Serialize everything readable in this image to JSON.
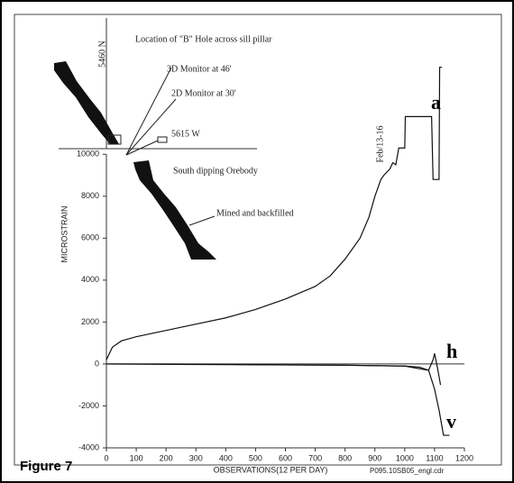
{
  "chart_data": {
    "type": "line",
    "x_label": "OBSERVATIONS(12 PER DAY)",
    "y_label": "MICROSTRAIN",
    "xlim": [
      0,
      1200
    ],
    "xticks": [
      0,
      100,
      200,
      300,
      400,
      500,
      600,
      700,
      800,
      900,
      1000,
      1100,
      1200
    ],
    "ylim": [
      -4000,
      16500
    ],
    "yticks": [
      -4000,
      -2000,
      0,
      2000,
      4000,
      6000,
      8000,
      10000
    ],
    "series": [
      {
        "name": "a",
        "color": "#111111",
        "x": [
          0,
          20,
          50,
          100,
          200,
          300,
          400,
          500,
          600,
          700,
          750,
          800,
          850,
          880,
          900,
          920,
          930,
          950,
          960,
          970,
          980,
          1000,
          1002,
          1090,
          1095,
          1115,
          1117,
          1125
        ],
        "values": [
          200,
          800,
          1100,
          1300,
          1600,
          1900,
          2200,
          2600,
          3100,
          3700,
          4200,
          5000,
          6000,
          7000,
          8000,
          8800,
          9000,
          9300,
          9600,
          9500,
          10300,
          10300,
          11800,
          11800,
          8800,
          8800,
          14150,
          14150
        ]
      },
      {
        "name": "h",
        "color": "#111111",
        "x": [
          0,
          200,
          400,
          600,
          800,
          1000,
          1050,
          1080,
          1095,
          1100,
          1110,
          1120
        ],
        "values": [
          0,
          0,
          -20,
          -40,
          -60,
          -100,
          -150,
          -300,
          200,
          500,
          -200,
          -1000
        ]
      },
      {
        "name": "v",
        "color": "#111111",
        "x": [
          0,
          400,
          800,
          1000,
          1080,
          1100,
          1115,
          1130,
          1150
        ],
        "values": [
          0,
          -30,
          -60,
          -100,
          -300,
          -1200,
          -2200,
          -3400,
          -3400
        ]
      }
    ],
    "annotations": [
      "Location of \"B\" Hole across sill pillar",
      "3D Monitor at 46'",
      "2D Monitor at 30'",
      "5615 W",
      "5460 N",
      "South dipping Orebody",
      "Mined and backfilled",
      "Feb/13-16"
    ],
    "figure_label": "Figure 7",
    "file_label": "P095.10SB05_engl.cdr"
  }
}
